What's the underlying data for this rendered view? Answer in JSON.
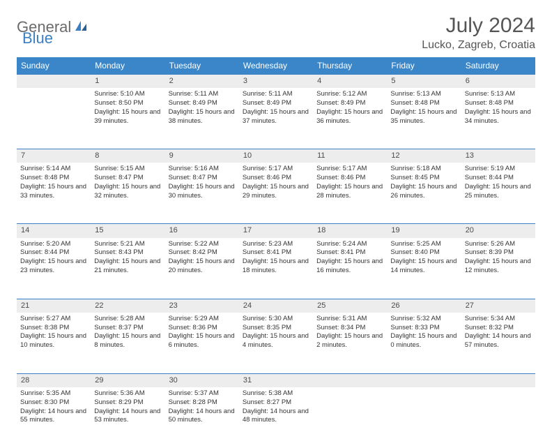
{
  "logo": {
    "text1": "General",
    "text2": "Blue"
  },
  "title": "July 2024",
  "location": "Lucko, Zagreb, Croatia",
  "colors": {
    "header_bg": "#3a86c8",
    "header_text": "#ffffff",
    "border": "#3a7fc4",
    "daynum_bg": "#ededed",
    "logo_gray": "#6b6b6b",
    "logo_blue": "#3a7fc4"
  },
  "weekdays": [
    "Sunday",
    "Monday",
    "Tuesday",
    "Wednesday",
    "Thursday",
    "Friday",
    "Saturday"
  ],
  "weeks": [
    {
      "nums": [
        "",
        "1",
        "2",
        "3",
        "4",
        "5",
        "6"
      ],
      "cells": [
        null,
        {
          "sunrise": "Sunrise: 5:10 AM",
          "sunset": "Sunset: 8:50 PM",
          "daylight": "Daylight: 15 hours and 39 minutes."
        },
        {
          "sunrise": "Sunrise: 5:11 AM",
          "sunset": "Sunset: 8:49 PM",
          "daylight": "Daylight: 15 hours and 38 minutes."
        },
        {
          "sunrise": "Sunrise: 5:11 AM",
          "sunset": "Sunset: 8:49 PM",
          "daylight": "Daylight: 15 hours and 37 minutes."
        },
        {
          "sunrise": "Sunrise: 5:12 AM",
          "sunset": "Sunset: 8:49 PM",
          "daylight": "Daylight: 15 hours and 36 minutes."
        },
        {
          "sunrise": "Sunrise: 5:13 AM",
          "sunset": "Sunset: 8:48 PM",
          "daylight": "Daylight: 15 hours and 35 minutes."
        },
        {
          "sunrise": "Sunrise: 5:13 AM",
          "sunset": "Sunset: 8:48 PM",
          "daylight": "Daylight: 15 hours and 34 minutes."
        }
      ]
    },
    {
      "nums": [
        "7",
        "8",
        "9",
        "10",
        "11",
        "12",
        "13"
      ],
      "cells": [
        {
          "sunrise": "Sunrise: 5:14 AM",
          "sunset": "Sunset: 8:48 PM",
          "daylight": "Daylight: 15 hours and 33 minutes."
        },
        {
          "sunrise": "Sunrise: 5:15 AM",
          "sunset": "Sunset: 8:47 PM",
          "daylight": "Daylight: 15 hours and 32 minutes."
        },
        {
          "sunrise": "Sunrise: 5:16 AM",
          "sunset": "Sunset: 8:47 PM",
          "daylight": "Daylight: 15 hours and 30 minutes."
        },
        {
          "sunrise": "Sunrise: 5:17 AM",
          "sunset": "Sunset: 8:46 PM",
          "daylight": "Daylight: 15 hours and 29 minutes."
        },
        {
          "sunrise": "Sunrise: 5:17 AM",
          "sunset": "Sunset: 8:46 PM",
          "daylight": "Daylight: 15 hours and 28 minutes."
        },
        {
          "sunrise": "Sunrise: 5:18 AM",
          "sunset": "Sunset: 8:45 PM",
          "daylight": "Daylight: 15 hours and 26 minutes."
        },
        {
          "sunrise": "Sunrise: 5:19 AM",
          "sunset": "Sunset: 8:44 PM",
          "daylight": "Daylight: 15 hours and 25 minutes."
        }
      ]
    },
    {
      "nums": [
        "14",
        "15",
        "16",
        "17",
        "18",
        "19",
        "20"
      ],
      "cells": [
        {
          "sunrise": "Sunrise: 5:20 AM",
          "sunset": "Sunset: 8:44 PM",
          "daylight": "Daylight: 15 hours and 23 minutes."
        },
        {
          "sunrise": "Sunrise: 5:21 AM",
          "sunset": "Sunset: 8:43 PM",
          "daylight": "Daylight: 15 hours and 21 minutes."
        },
        {
          "sunrise": "Sunrise: 5:22 AM",
          "sunset": "Sunset: 8:42 PM",
          "daylight": "Daylight: 15 hours and 20 minutes."
        },
        {
          "sunrise": "Sunrise: 5:23 AM",
          "sunset": "Sunset: 8:41 PM",
          "daylight": "Daylight: 15 hours and 18 minutes."
        },
        {
          "sunrise": "Sunrise: 5:24 AM",
          "sunset": "Sunset: 8:41 PM",
          "daylight": "Daylight: 15 hours and 16 minutes."
        },
        {
          "sunrise": "Sunrise: 5:25 AM",
          "sunset": "Sunset: 8:40 PM",
          "daylight": "Daylight: 15 hours and 14 minutes."
        },
        {
          "sunrise": "Sunrise: 5:26 AM",
          "sunset": "Sunset: 8:39 PM",
          "daylight": "Daylight: 15 hours and 12 minutes."
        }
      ]
    },
    {
      "nums": [
        "21",
        "22",
        "23",
        "24",
        "25",
        "26",
        "27"
      ],
      "cells": [
        {
          "sunrise": "Sunrise: 5:27 AM",
          "sunset": "Sunset: 8:38 PM",
          "daylight": "Daylight: 15 hours and 10 minutes."
        },
        {
          "sunrise": "Sunrise: 5:28 AM",
          "sunset": "Sunset: 8:37 PM",
          "daylight": "Daylight: 15 hours and 8 minutes."
        },
        {
          "sunrise": "Sunrise: 5:29 AM",
          "sunset": "Sunset: 8:36 PM",
          "daylight": "Daylight: 15 hours and 6 minutes."
        },
        {
          "sunrise": "Sunrise: 5:30 AM",
          "sunset": "Sunset: 8:35 PM",
          "daylight": "Daylight: 15 hours and 4 minutes."
        },
        {
          "sunrise": "Sunrise: 5:31 AM",
          "sunset": "Sunset: 8:34 PM",
          "daylight": "Daylight: 15 hours and 2 minutes."
        },
        {
          "sunrise": "Sunrise: 5:32 AM",
          "sunset": "Sunset: 8:33 PM",
          "daylight": "Daylight: 15 hours and 0 minutes."
        },
        {
          "sunrise": "Sunrise: 5:34 AM",
          "sunset": "Sunset: 8:32 PM",
          "daylight": "Daylight: 14 hours and 57 minutes."
        }
      ]
    },
    {
      "nums": [
        "28",
        "29",
        "30",
        "31",
        "",
        "",
        ""
      ],
      "cells": [
        {
          "sunrise": "Sunrise: 5:35 AM",
          "sunset": "Sunset: 8:30 PM",
          "daylight": "Daylight: 14 hours and 55 minutes."
        },
        {
          "sunrise": "Sunrise: 5:36 AM",
          "sunset": "Sunset: 8:29 PM",
          "daylight": "Daylight: 14 hours and 53 minutes."
        },
        {
          "sunrise": "Sunrise: 5:37 AM",
          "sunset": "Sunset: 8:28 PM",
          "daylight": "Daylight: 14 hours and 50 minutes."
        },
        {
          "sunrise": "Sunrise: 5:38 AM",
          "sunset": "Sunset: 8:27 PM",
          "daylight": "Daylight: 14 hours and 48 minutes."
        },
        null,
        null,
        null
      ]
    }
  ]
}
